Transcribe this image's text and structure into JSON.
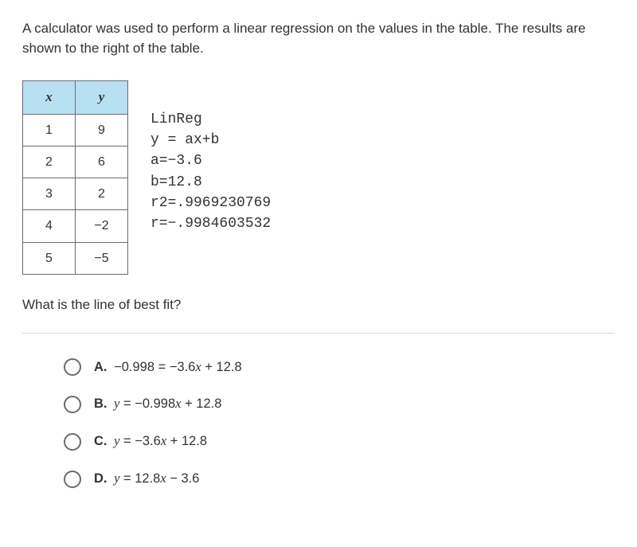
{
  "question": {
    "prompt": "A calculator was used to perform a linear regression on the values in the table. The results are shown to the right of the table.",
    "sub_prompt": "What is the line of best fit?"
  },
  "table": {
    "header_x": "x",
    "header_y": "y",
    "rows": [
      {
        "x": "1",
        "y": "9"
      },
      {
        "x": "2",
        "y": "6"
      },
      {
        "x": "3",
        "y": "2"
      },
      {
        "x": "4",
        "y": "−2"
      },
      {
        "x": "5",
        "y": "−5"
      }
    ],
    "header_bg": "#b7e1f3",
    "border_color": "#6b6b6b"
  },
  "linreg": {
    "title": "LinReg",
    "eq": "y = ax+b",
    "a": "a=−3.6",
    "b": "b=12.8",
    "r2": "r2=.9969230769",
    "r": "r=−.9984603532"
  },
  "options": {
    "a": {
      "letter": "A.",
      "text": "−0.998 = −3.6x + 12.8"
    },
    "b": {
      "letter": "B.",
      "text": "y = −0.998x + 12.8"
    },
    "c": {
      "letter": "C.",
      "text": "y = −3.6x + 12.8"
    },
    "d": {
      "letter": "D.",
      "text": "y = 12.8x − 3.6"
    }
  }
}
